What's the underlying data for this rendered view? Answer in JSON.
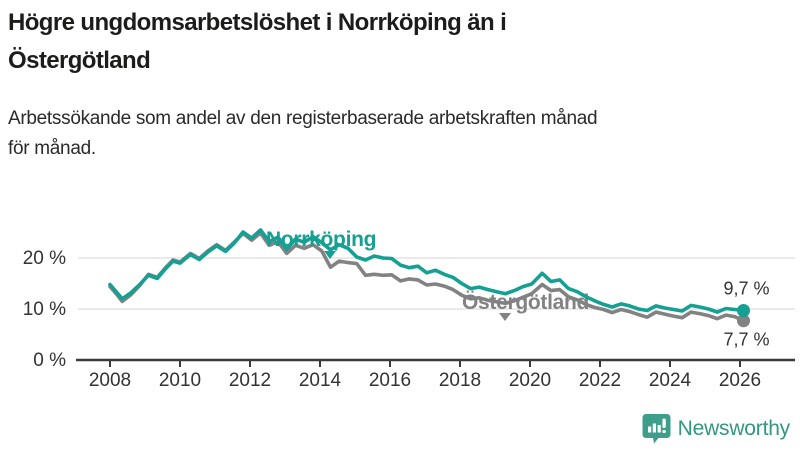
{
  "header": {
    "title": "Högre ungdomsarbetslöshet i Norrköping än i Östergötland",
    "title_lines": [
      "Högre ungdomsarbetslöshet i Norrköping än i",
      "Östergötland"
    ],
    "subtitle": "Arbetssökande som andel av den registerbaserade arbetskraften månad för månad.",
    "subtitle_lines": [
      "Arbetssökande som andel av den registerbaserade arbetskraften månad",
      "för månad."
    ]
  },
  "colors": {
    "norrkoping": "#14a093",
    "ostergotland": "#828282",
    "axis": "#3a3a3a",
    "gridline": "#e3e3e3",
    "tick_text": "#333333",
    "value_label": "#333333",
    "brand": "#31977f"
  },
  "chart_data": {
    "type": "line",
    "title": "",
    "xlabel": "",
    "ylabel": "",
    "grid": "horizontal",
    "legend_position": "inline-labels",
    "xlim": [
      2007.1,
      2026.6
    ],
    "ylim": [
      0,
      27
    ],
    "x_ticks": [
      2008,
      2010,
      2012,
      2014,
      2016,
      2018,
      2020,
      2022,
      2024,
      2026
    ],
    "y_ticks": [
      {
        "label": "0 %",
        "value": 0
      },
      {
        "label": "10 %",
        "value": 10
      },
      {
        "label": "20 %",
        "value": 20
      }
    ],
    "series": [
      {
        "name": "Östergötland",
        "color": "#828282",
        "end_label": "7,7 %",
        "points": [
          [
            2008.0,
            14.4
          ],
          [
            2008.2,
            12.8
          ],
          [
            2008.35,
            11.5
          ],
          [
            2008.6,
            12.8
          ],
          [
            2008.85,
            14.6
          ],
          [
            2009.1,
            16.8
          ],
          [
            2009.35,
            16.2
          ],
          [
            2009.6,
            18.2
          ],
          [
            2009.8,
            19.6
          ],
          [
            2010.0,
            19.2
          ],
          [
            2010.3,
            20.9
          ],
          [
            2010.55,
            19.9
          ],
          [
            2010.8,
            21.4
          ],
          [
            2011.05,
            22.6
          ],
          [
            2011.3,
            21.5
          ],
          [
            2011.55,
            23.1
          ],
          [
            2011.8,
            24.8
          ],
          [
            2012.05,
            23.5
          ],
          [
            2012.3,
            24.9
          ],
          [
            2012.55,
            22.5
          ],
          [
            2012.8,
            23.2
          ],
          [
            2013.05,
            20.9
          ],
          [
            2013.3,
            22.5
          ],
          [
            2013.55,
            21.9
          ],
          [
            2013.8,
            22.6
          ],
          [
            2014.05,
            21.4
          ],
          [
            2014.3,
            18.2
          ],
          [
            2014.55,
            19.4
          ],
          [
            2014.8,
            19.1
          ],
          [
            2015.05,
            18.9
          ],
          [
            2015.3,
            16.6
          ],
          [
            2015.55,
            16.8
          ],
          [
            2015.8,
            16.6
          ],
          [
            2016.05,
            16.7
          ],
          [
            2016.3,
            15.5
          ],
          [
            2016.55,
            15.9
          ],
          [
            2016.8,
            15.7
          ],
          [
            2017.05,
            14.7
          ],
          [
            2017.3,
            14.9
          ],
          [
            2017.55,
            14.5
          ],
          [
            2017.8,
            13.8
          ],
          [
            2018.05,
            12.7
          ],
          [
            2018.3,
            12.0
          ],
          [
            2018.55,
            12.2
          ],
          [
            2018.8,
            11.7
          ],
          [
            2019.05,
            11.4
          ],
          [
            2019.3,
            11.1
          ],
          [
            2019.55,
            11.6
          ],
          [
            2019.8,
            12.3
          ],
          [
            2020.05,
            13.0
          ],
          [
            2020.35,
            14.8
          ],
          [
            2020.6,
            13.6
          ],
          [
            2020.85,
            13.8
          ],
          [
            2021.1,
            12.4
          ],
          [
            2021.35,
            11.8
          ],
          [
            2021.6,
            10.9
          ],
          [
            2021.85,
            10.3
          ],
          [
            2022.1,
            9.9
          ],
          [
            2022.35,
            9.3
          ],
          [
            2022.6,
            9.9
          ],
          [
            2022.85,
            9.5
          ],
          [
            2023.1,
            8.9
          ],
          [
            2023.35,
            8.4
          ],
          [
            2023.6,
            9.4
          ],
          [
            2023.85,
            9.0
          ],
          [
            2024.1,
            8.6
          ],
          [
            2024.35,
            8.3
          ],
          [
            2024.6,
            9.4
          ],
          [
            2024.85,
            9.1
          ],
          [
            2025.1,
            8.7
          ],
          [
            2025.35,
            8.1
          ],
          [
            2025.6,
            8.8
          ],
          [
            2025.85,
            8.5
          ],
          [
            2026.1,
            7.7
          ]
        ]
      },
      {
        "name": "Norrköping",
        "color": "#14a093",
        "end_label": "9,7 %",
        "points": [
          [
            2008.0,
            14.8
          ],
          [
            2008.2,
            13.2
          ],
          [
            2008.35,
            12.0
          ],
          [
            2008.6,
            13.2
          ],
          [
            2008.85,
            14.8
          ],
          [
            2009.1,
            16.6
          ],
          [
            2009.35,
            16.0
          ],
          [
            2009.6,
            18.0
          ],
          [
            2009.8,
            19.4
          ],
          [
            2010.0,
            19.0
          ],
          [
            2010.3,
            20.7
          ],
          [
            2010.55,
            19.7
          ],
          [
            2010.8,
            21.2
          ],
          [
            2011.05,
            22.4
          ],
          [
            2011.3,
            21.3
          ],
          [
            2011.55,
            22.9
          ],
          [
            2011.8,
            25.1
          ],
          [
            2012.05,
            23.9
          ],
          [
            2012.3,
            25.5
          ],
          [
            2012.55,
            23.2
          ],
          [
            2012.8,
            24.1
          ],
          [
            2013.05,
            21.7
          ],
          [
            2013.3,
            23.7
          ],
          [
            2013.55,
            23.1
          ],
          [
            2013.8,
            24.2
          ],
          [
            2014.05,
            23.0
          ],
          [
            2014.3,
            21.6
          ],
          [
            2014.55,
            22.6
          ],
          [
            2014.8,
            21.9
          ],
          [
            2015.05,
            20.2
          ],
          [
            2015.3,
            19.6
          ],
          [
            2015.55,
            20.4
          ],
          [
            2015.8,
            20.0
          ],
          [
            2016.05,
            19.9
          ],
          [
            2016.3,
            18.6
          ],
          [
            2016.55,
            18.1
          ],
          [
            2016.8,
            18.4
          ],
          [
            2017.05,
            17.1
          ],
          [
            2017.3,
            17.6
          ],
          [
            2017.55,
            16.8
          ],
          [
            2017.8,
            16.2
          ],
          [
            2018.05,
            15.0
          ],
          [
            2018.3,
            14.0
          ],
          [
            2018.55,
            14.3
          ],
          [
            2018.8,
            13.8
          ],
          [
            2019.05,
            13.4
          ],
          [
            2019.3,
            13.0
          ],
          [
            2019.55,
            13.6
          ],
          [
            2019.8,
            14.4
          ],
          [
            2020.05,
            14.9
          ],
          [
            2020.35,
            17.0
          ],
          [
            2020.6,
            15.4
          ],
          [
            2020.85,
            15.7
          ],
          [
            2021.1,
            14.0
          ],
          [
            2021.35,
            13.4
          ],
          [
            2021.6,
            12.4
          ],
          [
            2021.85,
            11.6
          ],
          [
            2022.1,
            10.9
          ],
          [
            2022.35,
            10.4
          ],
          [
            2022.6,
            11.0
          ],
          [
            2022.85,
            10.6
          ],
          [
            2023.1,
            10.0
          ],
          [
            2023.35,
            9.7
          ],
          [
            2023.6,
            10.6
          ],
          [
            2023.85,
            10.2
          ],
          [
            2024.1,
            9.9
          ],
          [
            2024.35,
            9.6
          ],
          [
            2024.6,
            10.7
          ],
          [
            2024.85,
            10.4
          ],
          [
            2025.1,
            10.0
          ],
          [
            2025.35,
            9.4
          ],
          [
            2025.6,
            10.1
          ],
          [
            2025.85,
            9.9
          ],
          [
            2026.1,
            9.7
          ]
        ]
      }
    ]
  },
  "footer": {
    "brand_name": "Newsworthy",
    "brand_icon": "bar-chart-speech-bubble-icon"
  }
}
